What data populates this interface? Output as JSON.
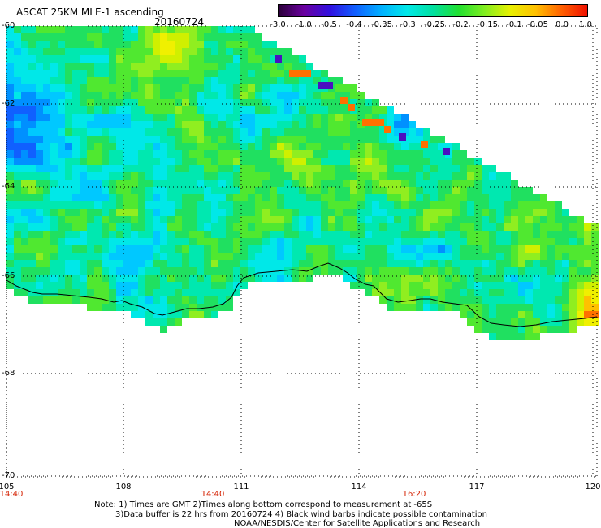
{
  "header": {
    "title": "ASCAT 25KM MLE-1 ascending",
    "date": "20160724"
  },
  "colorbar": {
    "labels": [
      "-3.0",
      "-1.0",
      "-0.5",
      "-0.4",
      "-0.35",
      "-0.3",
      "-0.25",
      "-0.2",
      "-0.15",
      "-0.1",
      "-0.05",
      "0.0",
      "1.0"
    ],
    "colors": [
      "#2a0038",
      "#6a00a0",
      "#3010e0",
      "#1060ff",
      "#00b0ff",
      "#00e8e8",
      "#00e0a0",
      "#20e030",
      "#80ee20",
      "#e8f000",
      "#ffc000",
      "#ff6000",
      "#f01000"
    ]
  },
  "axes": {
    "lat_labels": [
      "-60",
      "-62",
      "-64",
      "-66",
      "-68",
      "-70"
    ],
    "lon_labels": [
      "105",
      "108",
      "111",
      "114",
      "117",
      "120"
    ]
  },
  "time_marks": [
    "14:40",
    "14:40",
    "16:20"
  ],
  "notes": {
    "line1": "Note: 1) Times are GMT 2)Times along bottom correspond to measurement at -65S",
    "line2": "3)Data buffer is 22 hrs from 20160724 4) Black wind barbs indicate possible contamination",
    "line3": "NOAA/NESDIS/Center for Satellite Applications and Research"
  }
}
